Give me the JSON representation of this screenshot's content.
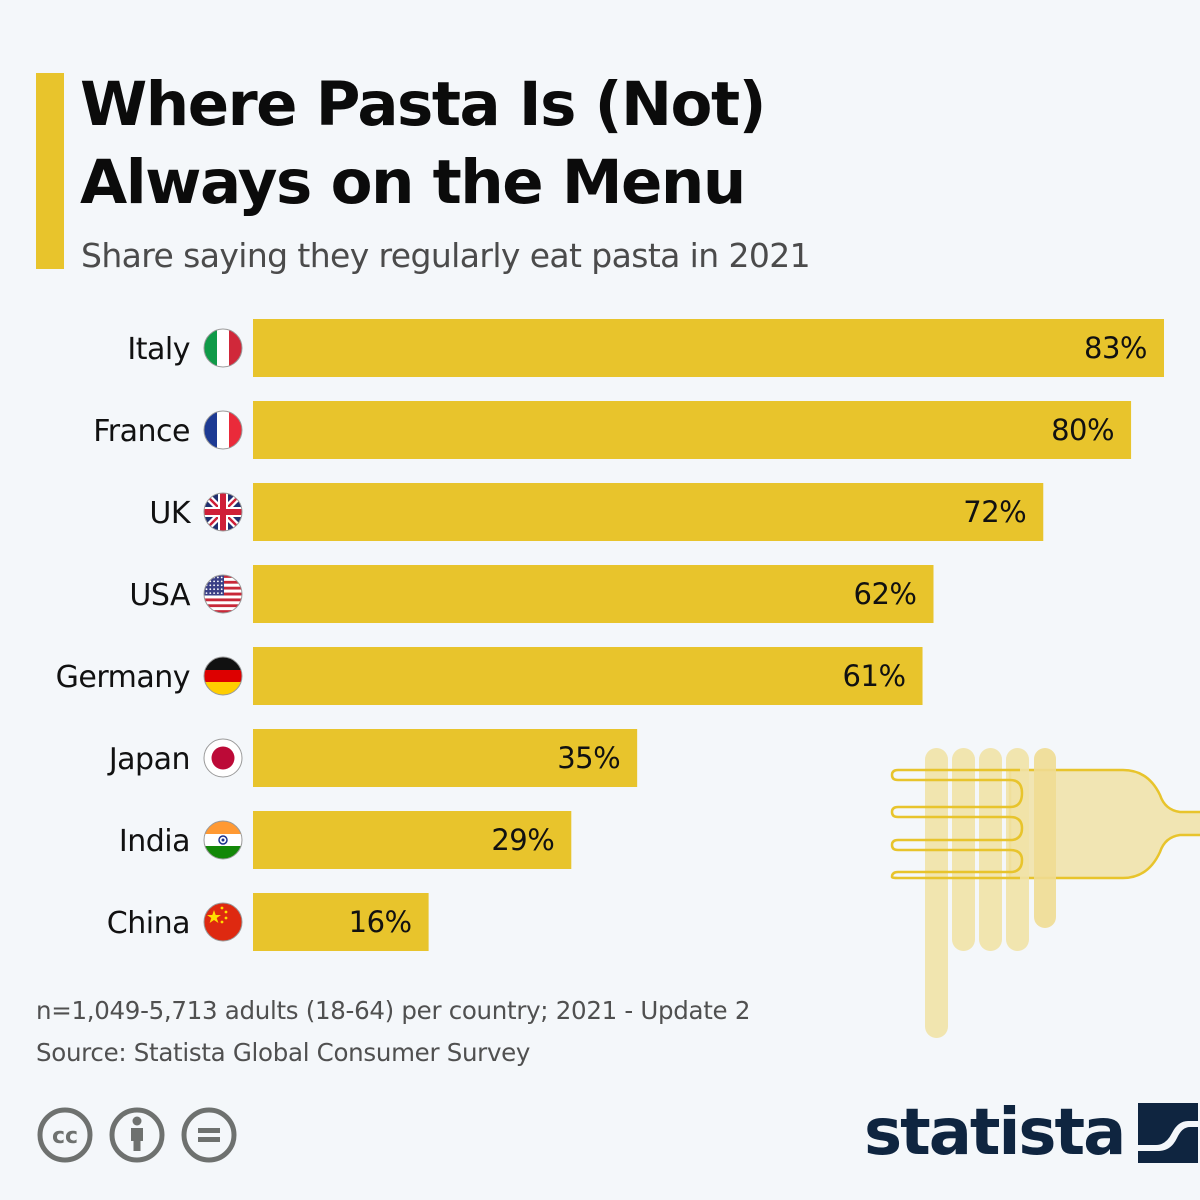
{
  "header": {
    "title_line1": "Where Pasta Is (Not)",
    "title_line2": "Always on the Menu",
    "subtitle": "Share saying they regularly eat pasta in 2021"
  },
  "chart_data": {
    "type": "bar",
    "orientation": "horizontal",
    "title": "Where Pasta Is (Not) Always on the Menu",
    "subtitle": "Share saying they regularly eat pasta in 2021",
    "xlabel": "",
    "ylabel": "",
    "unit": "%",
    "xlim": [
      0,
      83
    ],
    "grid": false,
    "categories": [
      "Italy",
      "France",
      "UK",
      "USA",
      "Germany",
      "Japan",
      "India",
      "China"
    ],
    "values": [
      83,
      80,
      72,
      62,
      61,
      35,
      29,
      16
    ],
    "value_labels": [
      "83%",
      "80%",
      "72%",
      "62%",
      "61%",
      "35%",
      "29%",
      "16%"
    ],
    "flags": [
      "italy-flag",
      "france-flag",
      "uk-flag",
      "usa-flag",
      "germany-flag",
      "japan-flag",
      "india-flag",
      "china-flag"
    ],
    "bar_color": "#e8c42c"
  },
  "footer": {
    "sample_note": "n=1,049-5,713 adults (18-64) per country; 2021 - Update 2",
    "source": "Source: Statista Global Consumer Survey",
    "license_icons": [
      "cc-icon",
      "attribution-icon",
      "no-derivatives-icon"
    ],
    "brand": "statista"
  },
  "colors": {
    "accent": "#e8c42c",
    "background": "#f4f7fa",
    "brand": "#0f2540",
    "illustration": "#f1e5b3"
  }
}
